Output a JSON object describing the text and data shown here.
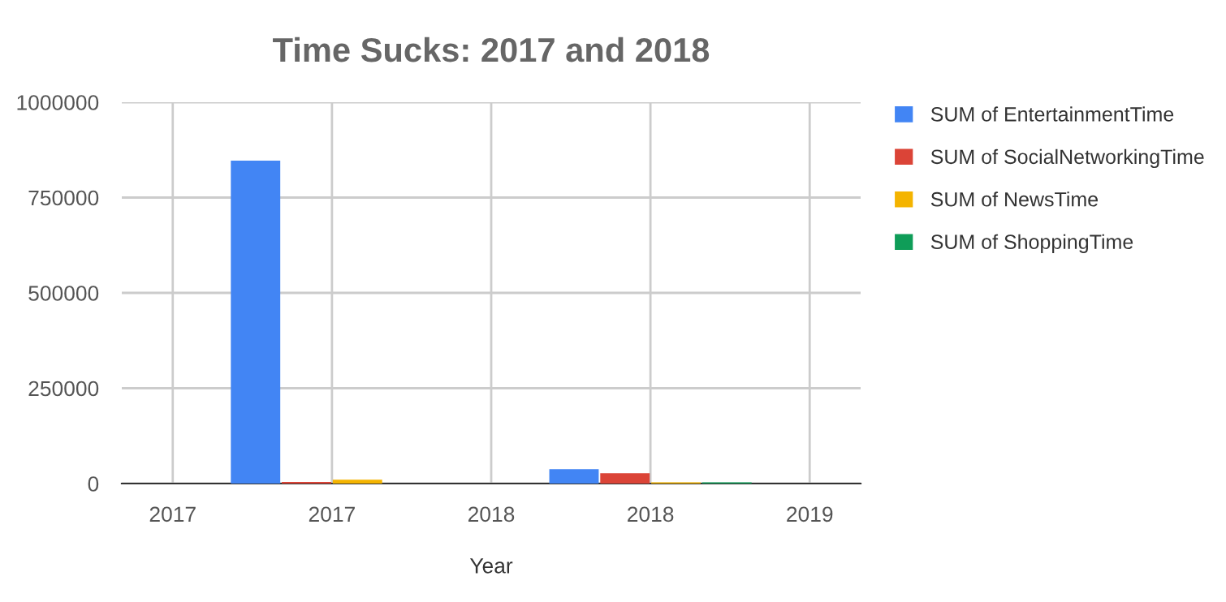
{
  "chart_data": {
    "type": "bar",
    "title": "Time Sucks: 2017 and 2018",
    "xlabel": "Year",
    "x": [
      2017,
      2018
    ],
    "series": [
      {
        "name": "SUM of EntertainmentTime",
        "color": "#4285f4",
        "values": [
          847000,
          38000
        ]
      },
      {
        "name": "SUM of SocialNetworkingTime",
        "color": "#db4437",
        "values": [
          4000,
          27000
        ]
      },
      {
        "name": "SUM of NewsTime",
        "color": "#f4b400",
        "values": [
          10000,
          3000
        ]
      },
      {
        "name": "SUM of ShoppingTime",
        "color": "#0f9d58",
        "values": [
          null,
          3000
        ]
      }
    ],
    "xlim": [
      2016.34,
      2018.66
    ],
    "xticks": [
      {
        "value": 2016.5,
        "label": "2017"
      },
      {
        "value": 2017,
        "label": "2017"
      },
      {
        "value": 2017.5,
        "label": "2018"
      },
      {
        "value": 2018,
        "label": "2018"
      },
      {
        "value": 2018.5,
        "label": "2019"
      }
    ],
    "ylim": [
      0,
      1000000
    ],
    "yticks": [
      0,
      250000,
      500000,
      750000,
      1000000
    ],
    "grid": true,
    "legend": "right"
  }
}
